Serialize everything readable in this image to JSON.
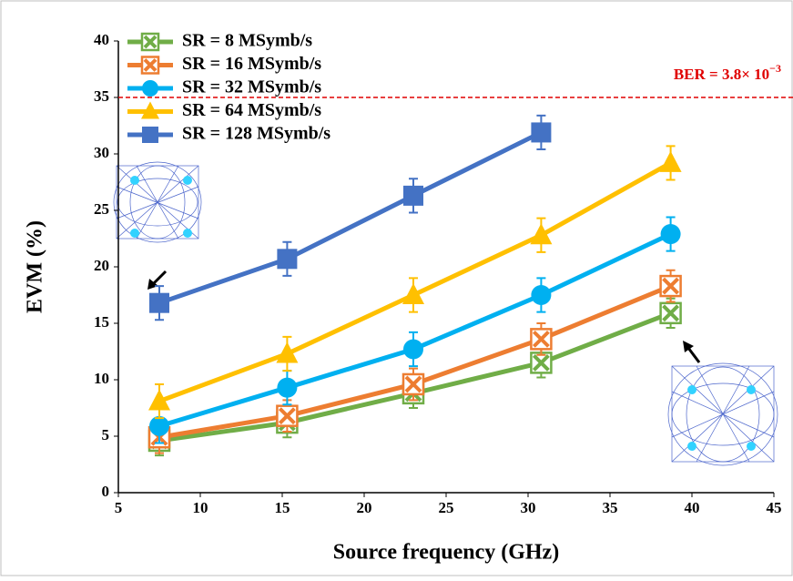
{
  "chart_data": {
    "type": "line",
    "x_label": "Source frequency (GHz)",
    "y_label": "EVM (%)",
    "x": [
      7.5,
      15.3,
      23,
      30.8,
      38.7
    ],
    "xlim": [
      5,
      45
    ],
    "xticks": [
      5,
      10,
      15,
      20,
      25,
      30,
      35,
      40,
      45
    ],
    "ylim": [
      0,
      40
    ],
    "yticks": [
      0,
      5,
      10,
      15,
      20,
      25,
      30,
      35,
      40
    ],
    "threshold": 35,
    "threshold_color": "#e00000",
    "threshold_label": "BER = 3.8× 10",
    "threshold_exponent": "−3",
    "series": [
      {
        "name": "SR = 8 MSymb/s",
        "color": "#70ad47",
        "marker": "xsquare",
        "values": [
          4.6,
          6.2,
          8.8,
          11.5,
          15.9
        ],
        "errors": [
          1.3,
          1.3,
          1.3,
          1.3,
          1.3
        ]
      },
      {
        "name": "SR = 16 MSymb/s",
        "color": "#ed7d31",
        "marker": "xsquare",
        "values": [
          4.9,
          6.8,
          9.6,
          13.6,
          18.3
        ],
        "errors": [
          1.4,
          1.4,
          1.4,
          1.4,
          1.4
        ]
      },
      {
        "name": "SR = 32 MSymb/s",
        "color": "#00b0f0",
        "marker": "circle",
        "values": [
          5.9,
          9.3,
          12.7,
          17.5,
          22.9
        ],
        "errors": [
          1.5,
          1.5,
          1.5,
          1.5,
          1.5
        ]
      },
      {
        "name": "SR = 64 MSymb/s",
        "color": "#ffc000",
        "marker": "triangle",
        "values": [
          8.1,
          12.3,
          17.5,
          22.8,
          29.2
        ],
        "errors": [
          1.5,
          1.5,
          1.5,
          1.5,
          1.5
        ]
      },
      {
        "name": "SR = 128 MSymb/s",
        "color": "#4472c4",
        "marker": "square",
        "values": [
          16.8,
          20.7,
          26.3,
          31.9,
          null
        ],
        "errors": [
          1.5,
          1.5,
          1.5,
          1.5,
          null
        ]
      }
    ]
  }
}
